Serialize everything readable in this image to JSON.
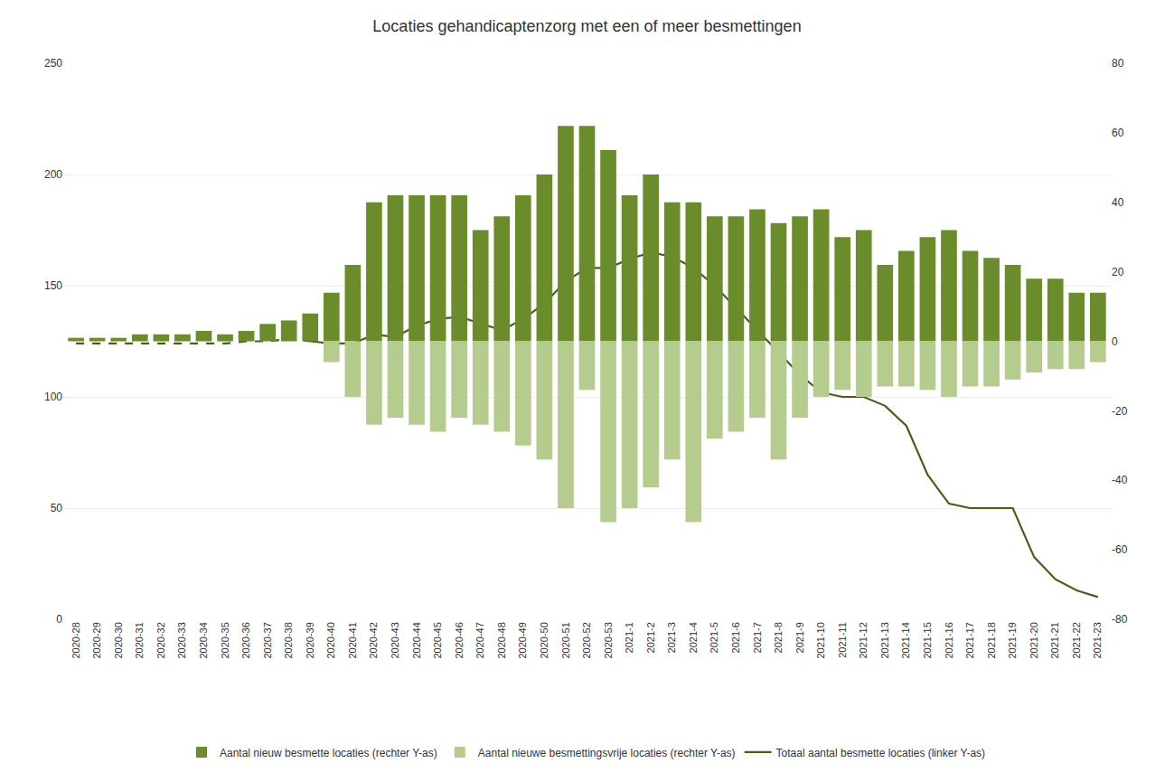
{
  "chart_data": {
    "type": "bar",
    "title": "Locaties gehandicaptenzorg met een of meer besmettingen",
    "categories": [
      "2020-28",
      "2020-29",
      "2020-30",
      "2020-31",
      "2020-32",
      "2020-33",
      "2020-34",
      "2020-35",
      "2020-36",
      "2020-37",
      "2020-38",
      "2020-39",
      "2020-40",
      "2020-41",
      "2020-42",
      "2020-43",
      "2020-44",
      "2020-45",
      "2020-46",
      "2020-47",
      "2020-48",
      "2020-49",
      "2020-50",
      "2020-51",
      "2020-52",
      "2020-53",
      "2021-1",
      "2021-2",
      "2021-3",
      "2021-4",
      "2021-5",
      "2021-6",
      "2021-7",
      "2021-8",
      "2021-9",
      "2021-10",
      "2021-11",
      "2021-12",
      "2021-13",
      "2021-14",
      "2021-15",
      "2021-16",
      "2021-17",
      "2021-18",
      "2021-19",
      "2021-20",
      "2021-21",
      "2021-22",
      "2021-23"
    ],
    "series": [
      {
        "name": "Aantal nieuw besmette locaties (rechter Y-as)",
        "type": "bar",
        "color": "#6b8c2a",
        "axis": "y2",
        "values": [
          1,
          1,
          1,
          2,
          2,
          2,
          3,
          2,
          3,
          5,
          6,
          8,
          14,
          22,
          40,
          42,
          42,
          42,
          42,
          32,
          36,
          42,
          48,
          62,
          62,
          55,
          42,
          48,
          40,
          40,
          36,
          36,
          38,
          34,
          36,
          38,
          30,
          32,
          22,
          26,
          30,
          32,
          26,
          24,
          22,
          18,
          18,
          14,
          14
        ]
      },
      {
        "name": "Aantal nieuwe besmettingsvrije locaties (rechter Y-as)",
        "type": "bar",
        "color": "#b5cc8e",
        "axis": "y2",
        "values": [
          0,
          0,
          0,
          0,
          0,
          0,
          0,
          0,
          0,
          0,
          0,
          0,
          -6,
          -16,
          -24,
          -22,
          -24,
          -26,
          -22,
          -24,
          -26,
          -30,
          -34,
          -48,
          -14,
          -52,
          -48,
          -42,
          -34,
          -52,
          -28,
          -26,
          -22,
          -34,
          -22,
          -16,
          -14,
          -16,
          -13,
          -13,
          -14,
          -16,
          -13,
          -13,
          -11,
          -9,
          -8,
          -8,
          -6
        ]
      },
      {
        "name": "Totaal aantal besmette locaties (linker Y-as)",
        "type": "line",
        "color": "#4a5e1a",
        "line_style": "dashed",
        "values": [
          124,
          124,
          124,
          124,
          124,
          124,
          124,
          124,
          125,
          125,
          126,
          125,
          null,
          null,
          null,
          null,
          null,
          null,
          null,
          null,
          null,
          null,
          null,
          null,
          null,
          null,
          null,
          null,
          null,
          null,
          null,
          null,
          null,
          null,
          null,
          null,
          null,
          null,
          null,
          null,
          null,
          null,
          null,
          null,
          null,
          null,
          null,
          null,
          null
        ]
      },
      {
        "name": "Totaal aantal besmette locaties (linker Y-as)",
        "type": "line",
        "color": "#4a5e1a",
        "line_style": "solid",
        "values": [
          null,
          null,
          null,
          null,
          null,
          null,
          null,
          null,
          null,
          null,
          null,
          125,
          124,
          124,
          128,
          127,
          132,
          135,
          136,
          133,
          130,
          135,
          142,
          152,
          158,
          158,
          162,
          165,
          163,
          158,
          150,
          140,
          130,
          120,
          110,
          102,
          100,
          100,
          96,
          87,
          65,
          52,
          50,
          50,
          50,
          28,
          18,
          13,
          10
        ]
      }
    ],
    "ylim": [
      0,
      250
    ],
    "yticks": [
      0,
      50,
      100,
      150,
      200,
      250
    ],
    "y2lim": [
      -80,
      80
    ],
    "y2ticks": [
      -80,
      -60,
      -40,
      -20,
      0,
      20,
      40,
      60,
      80
    ],
    "grid": true,
    "legend": "bottom"
  }
}
